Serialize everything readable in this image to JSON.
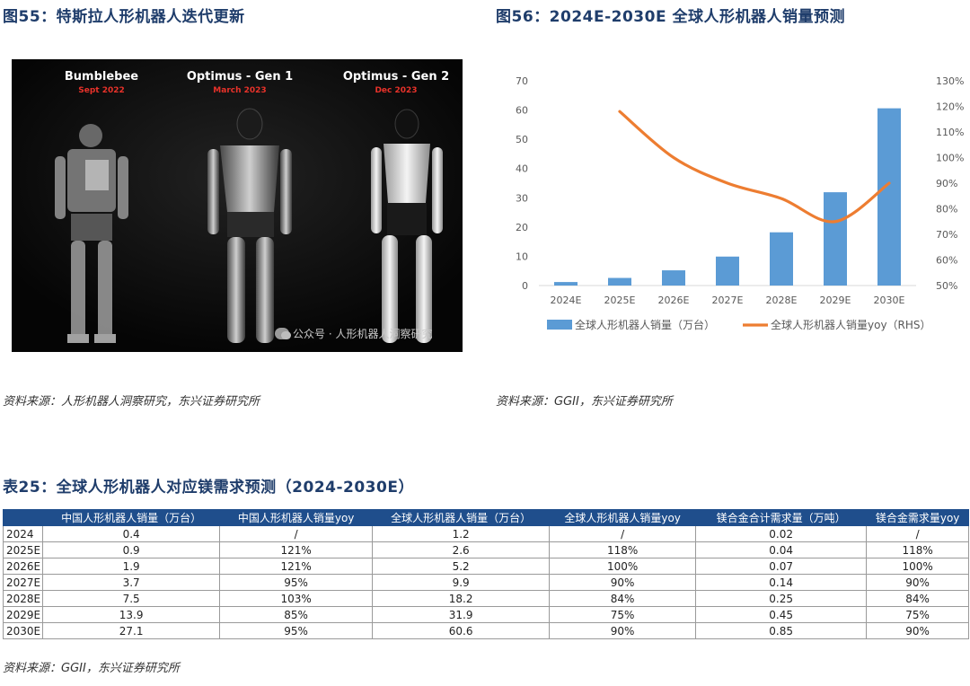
{
  "fig55": {
    "title": "图55：特斯拉人形机器人迭代更新",
    "robots": [
      {
        "name": "Bumblebee",
        "date": "Sept 2022"
      },
      {
        "name": "Optimus - Gen 1",
        "date": "March 2023"
      },
      {
        "name": "Optimus - Gen 2",
        "date": "Dec 2023"
      }
    ],
    "watermark": "公众号 · 人形机器人洞察研究",
    "source": "资料来源：人形机器人洞察研究，东兴证券研究所"
  },
  "fig56": {
    "title": "图56：2024E-2030E 全球人形机器人销量预测",
    "source": "资料来源：GGII，东兴证券研究所"
  },
  "chart_data": {
    "type": "bar",
    "categories": [
      "2024E",
      "2025E",
      "2026E",
      "2027E",
      "2028E",
      "2029E",
      "2030E"
    ],
    "series": [
      {
        "name": "全球人形机器人销量（万台）",
        "type": "bar",
        "axis": "left",
        "values": [
          1.2,
          2.6,
          5.2,
          9.9,
          18.2,
          31.9,
          60.6
        ]
      },
      {
        "name": "全球人形机器人销量yoy（RHS）",
        "type": "line",
        "axis": "right",
        "values": [
          null,
          1.18,
          1.0,
          0.9,
          0.84,
          0.75,
          0.9
        ]
      }
    ],
    "ylim": [
      0,
      70
    ],
    "yticks": [
      "0",
      "10",
      "20",
      "30",
      "40",
      "50",
      "60",
      "70"
    ],
    "y2lim": [
      0.5,
      1.3
    ],
    "y2ticks": [
      "50%",
      "60%",
      "70%",
      "80%",
      "90%",
      "100%",
      "110%",
      "120%",
      "130%"
    ],
    "bar_color": "#5b9bd5",
    "line_color": "#ed7d31",
    "grid": false,
    "legend_position": "bottom"
  },
  "table25": {
    "title": "表25：全球人形机器人对应镁需求预测（2024-2030E）",
    "headers": [
      "",
      "中国人形机器人销量（万台）",
      "中国人形机器人销量yoy",
      "全球人形机器人销量（万台）",
      "全球人形机器人销量yoy",
      "镁合金合计需求量（万吨）",
      "镁合金需求量yoy"
    ],
    "rows": [
      [
        "2024",
        "0.4",
        "/",
        "1.2",
        "/",
        "0.02",
        "/"
      ],
      [
        "2025E",
        "0.9",
        "121%",
        "2.6",
        "118%",
        "0.04",
        "118%"
      ],
      [
        "2026E",
        "1.9",
        "121%",
        "5.2",
        "100%",
        "0.07",
        "100%"
      ],
      [
        "2027E",
        "3.7",
        "95%",
        "9.9",
        "90%",
        "0.14",
        "90%"
      ],
      [
        "2028E",
        "7.5",
        "103%",
        "18.2",
        "84%",
        "0.25",
        "84%"
      ],
      [
        "2029E",
        "13.9",
        "85%",
        "31.9",
        "75%",
        "0.45",
        "75%"
      ],
      [
        "2030E",
        "27.1",
        "95%",
        "60.6",
        "90%",
        "0.85",
        "90%"
      ]
    ],
    "source": "资料来源：GGII，东兴证券研究所"
  }
}
